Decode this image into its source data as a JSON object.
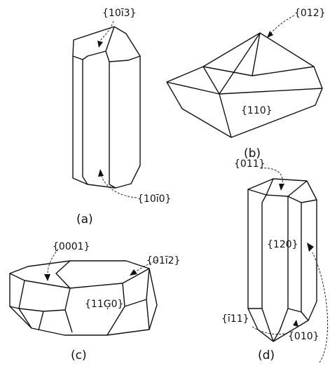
{
  "figures": {
    "a": {
      "caption": "(a)",
      "labels": [
        "{10ī3}",
        "{10ī0}"
      ]
    },
    "b": {
      "caption": "(b)",
      "labels": [
        "{012}",
        "{110}"
      ]
    },
    "c": {
      "caption": "(c)",
      "labels": [
        "{0001}",
        "{01ī2}",
        "{11Ģ0}"
      ]
    },
    "d": {
      "caption": "(d)",
      "labels": [
        "{011}",
        "{120}",
        "{ī11}",
        "{010}"
      ]
    }
  }
}
